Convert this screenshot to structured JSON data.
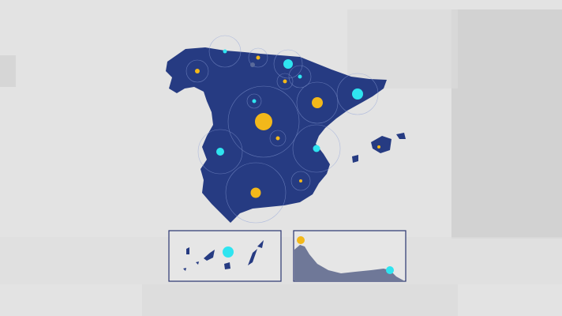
{
  "colors": {
    "background": "#e3e3e3",
    "land": "#263b82",
    "marker_primary": "#f3b81a",
    "marker_secondary": "#2fe4f0",
    "inset_border": "#2a3570",
    "inset_terrain": "#6f7898"
  },
  "map": {
    "region": "Spain",
    "insets": [
      "canary-islands",
      "ceuta-melilla"
    ]
  }
}
